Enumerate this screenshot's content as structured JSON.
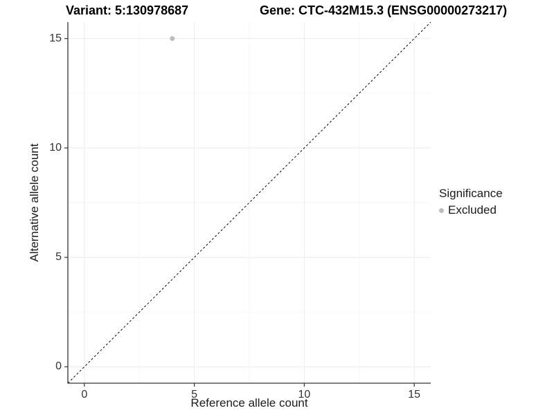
{
  "chart_data": {
    "type": "scatter",
    "title_left": "Variant: 5:130978687",
    "title_right": "Gene: CTC-432M15.3 (ENSG00000273217)",
    "xlabel": "Reference allele count",
    "ylabel": "Alternative allele count",
    "xlim": [
      -0.75,
      15.75
    ],
    "ylim": [
      -0.75,
      15.75
    ],
    "x_ticks": [
      0,
      5,
      10,
      15
    ],
    "y_ticks": [
      0,
      5,
      10,
      15
    ],
    "x_minor_ticks": [
      2.5,
      7.5,
      12.5
    ],
    "y_minor_ticks": [
      2.5,
      7.5,
      12.5
    ],
    "grid": "major+minor",
    "legend_position": "right",
    "series": [
      {
        "name": "Excluded",
        "marker": "circle",
        "color": "#bdbdbd",
        "point_radius": 3.5,
        "points": [
          {
            "x": 4,
            "y": 15
          }
        ]
      }
    ],
    "reference_line": {
      "kind": "identity",
      "slope": 1,
      "intercept": 0,
      "linetype": "dashed",
      "color": "#000000"
    },
    "legend": {
      "title": "Significance",
      "entries": [
        {
          "label": "Excluded",
          "color": "#bdbdbd",
          "marker": "circle"
        }
      ]
    },
    "colors": {
      "background": "#ffffff",
      "grid_major": "#ebebeb",
      "grid_minor": "#f6f6f6",
      "axis_line": "#333333",
      "tick_mark": "#333333",
      "tick_text": "#333333"
    }
  }
}
